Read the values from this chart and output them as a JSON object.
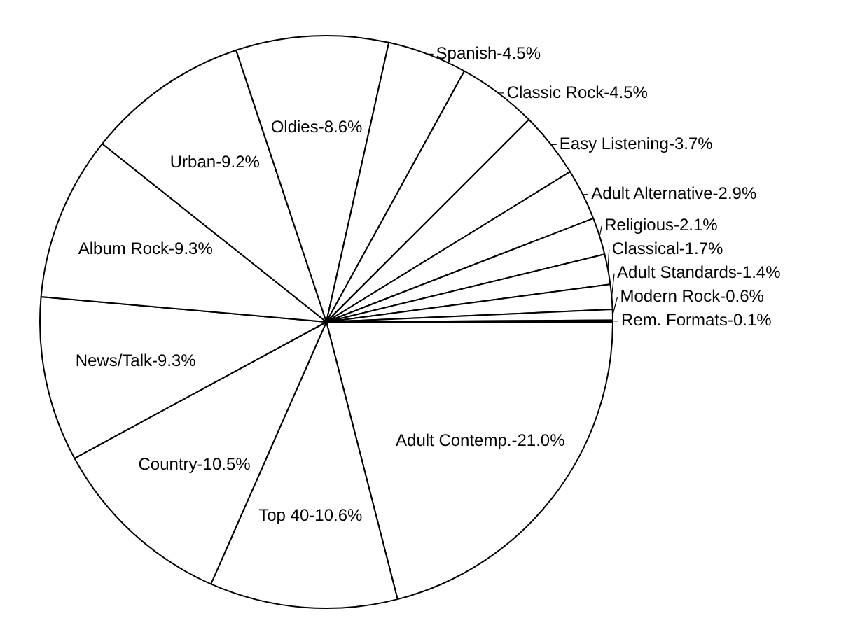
{
  "chart_data": {
    "type": "pie",
    "categories": [
      "Adult Contemp.",
      "Top 40",
      "Country",
      "News/Talk",
      "Album Rock",
      "Urban",
      "Oldies",
      "Spanish",
      "Classic Rock",
      "Easy Listening",
      "Adult Alternative",
      "Religious",
      "Classical",
      "Adult Standards",
      "Modern Rock",
      "Rem. Formats"
    ],
    "values": [
      21.0,
      10.6,
      10.5,
      9.3,
      9.3,
      9.2,
      8.6,
      4.5,
      4.5,
      3.7,
      2.9,
      2.1,
      1.7,
      1.4,
      0.6,
      0.1
    ],
    "value_labels": [
      "21.0%",
      "10.6%",
      "10.5%",
      "9.3%",
      "9.3%",
      "9.2%",
      "8.6%",
      "4.5%",
      "4.5%",
      "3.7%",
      "2.9%",
      "2.1%",
      "1.7%",
      "1.4%",
      "0.6%",
      "0.1%"
    ],
    "colors": [
      "#ffffff",
      "#ffffff",
      "#ffffff",
      "#ffffff",
      "#ffffff",
      "#ffffff",
      "#ffffff",
      "#ffffff",
      "#ffffff",
      "#ffffff",
      "#ffffff",
      "#ffffff",
      "#ffffff",
      "#ffffff",
      "#ffffff",
      "#ffffff"
    ]
  }
}
